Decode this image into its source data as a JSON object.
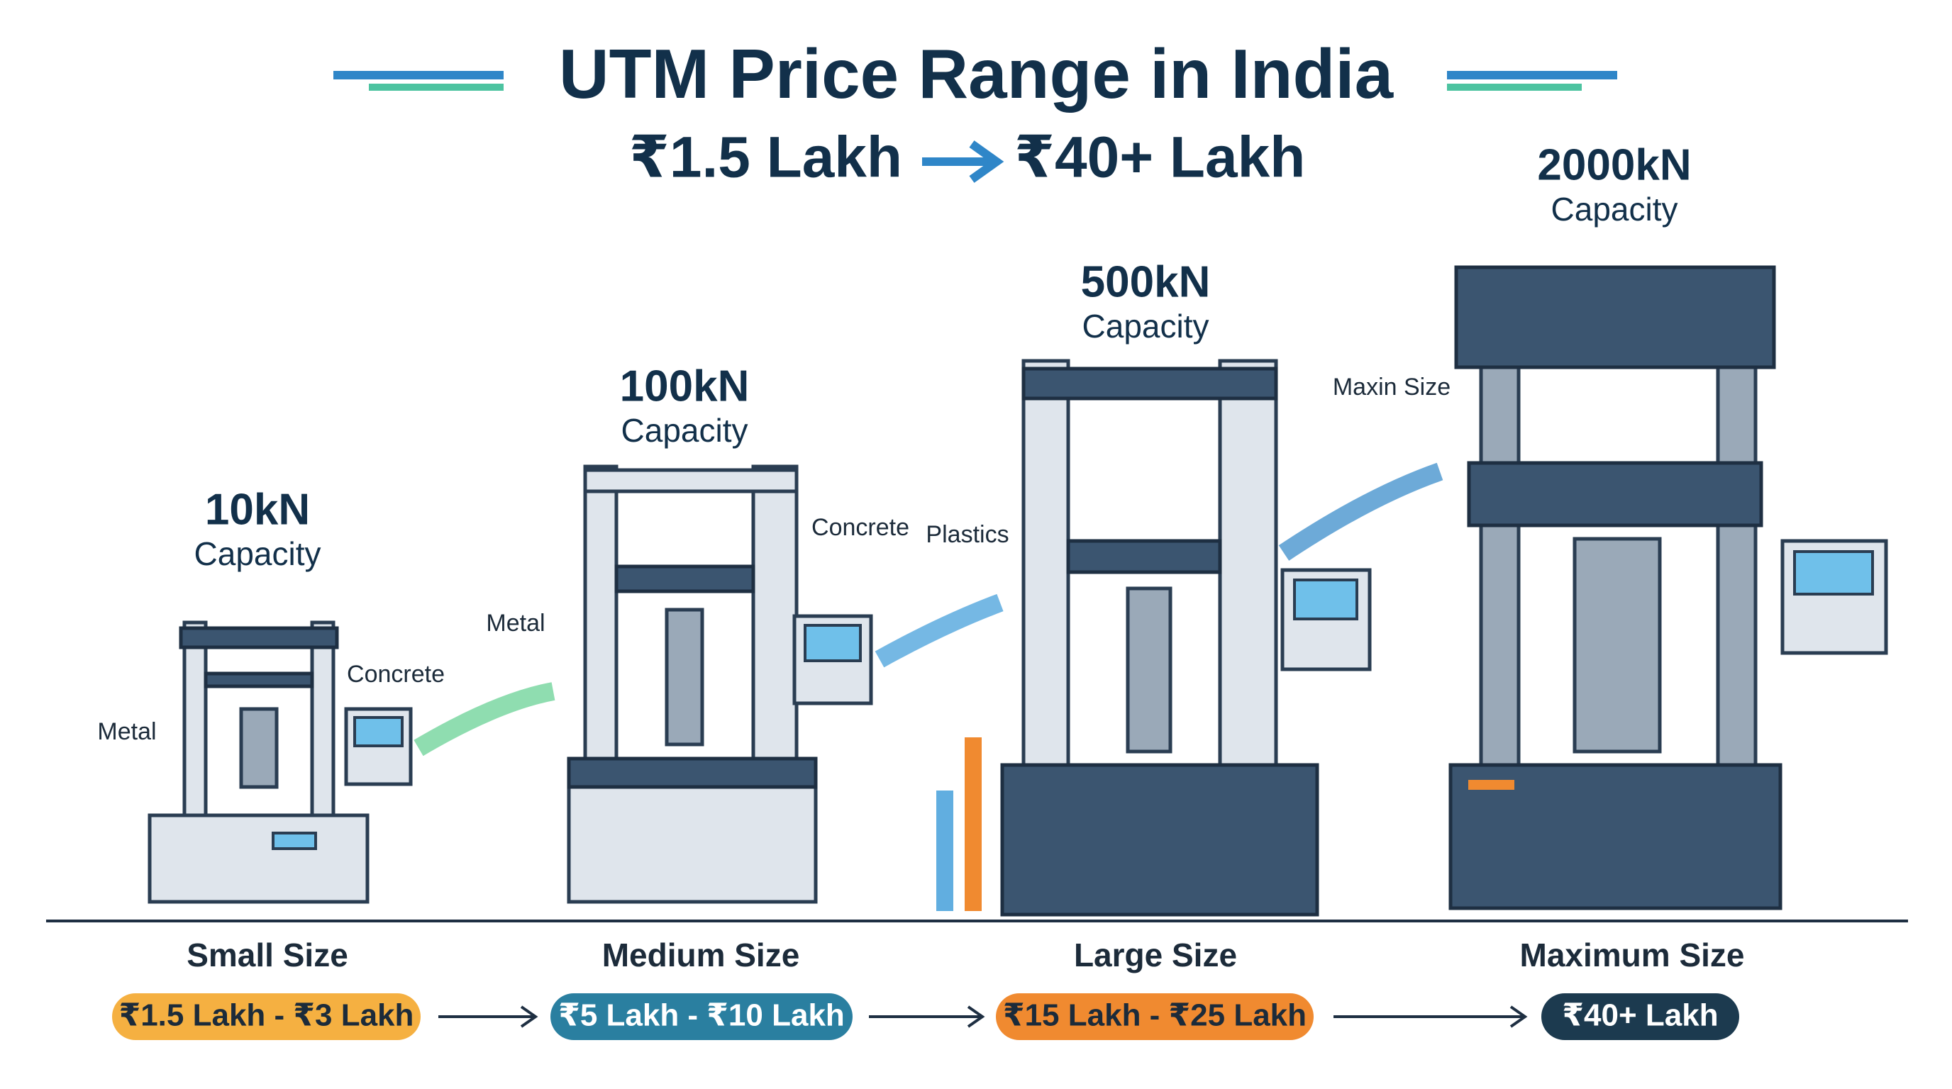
{
  "title": "UTM Price Range in India",
  "subtitle": {
    "from": "₹1.5 Lakh",
    "to": "₹40+ Lakh"
  },
  "tiers": [
    {
      "capacity": "10kN",
      "capacity_label": "Capacity",
      "size": "Small Size",
      "price": "₹1.5 Lakh - ₹3 Lakh"
    },
    {
      "capacity": "100kN",
      "capacity_label": "Capacity",
      "size": "Medium Size",
      "price": "₹5 Lakh - ₹10 Lakh"
    },
    {
      "capacity": "500kN",
      "capacity_label": "Capacity",
      "size": "Large Size",
      "price": "₹15 Lakh - ₹25 Lakh"
    },
    {
      "capacity": "2000kN",
      "capacity_label": "Capacity",
      "size": "Maximum Size",
      "price": "₹40+ Lakh"
    }
  ],
  "labels": [
    "Metal",
    "Concrete",
    "Metal",
    "Concrete",
    "Plastics",
    "Maxin Size"
  ]
}
